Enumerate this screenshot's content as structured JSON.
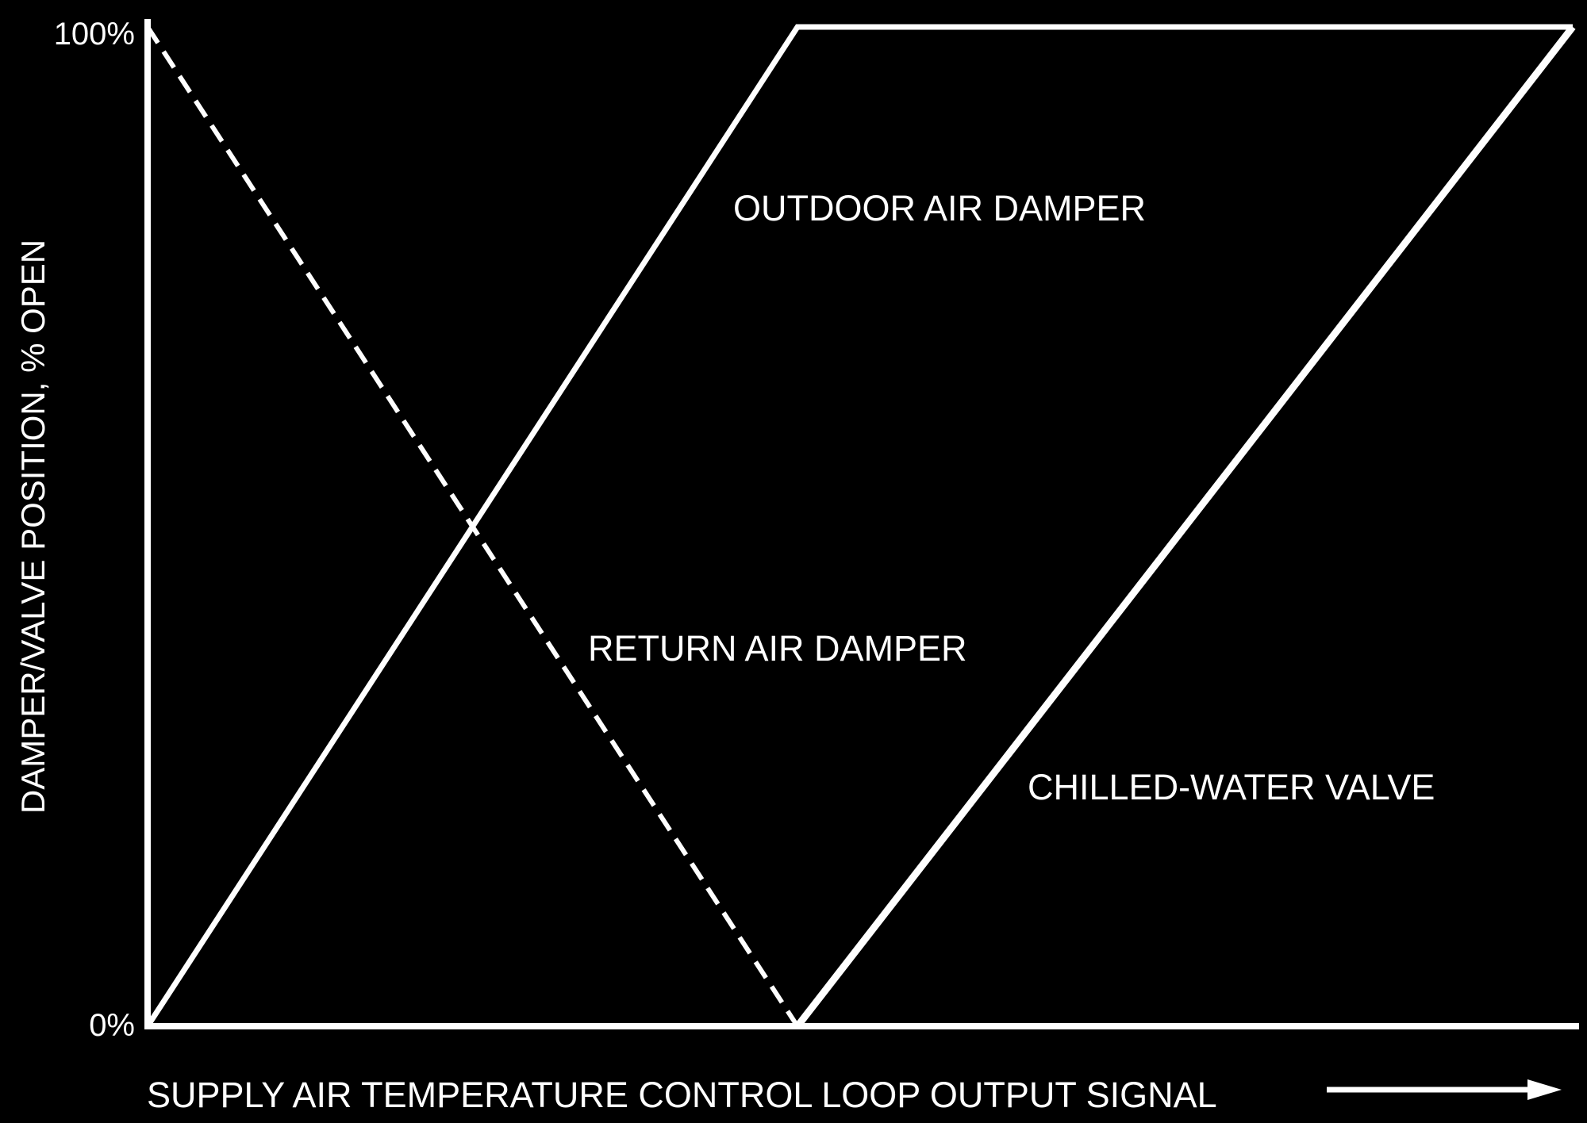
{
  "colors": {
    "background": "#000000",
    "foreground": "#ffffff"
  },
  "chart_data": {
    "type": "line",
    "title": "",
    "xlabel": "SUPPLY AIR TEMPERATURE CONTROL LOOP OUTPUT SIGNAL",
    "ylabel": "DAMPER/VALVE POSITION, % OPEN",
    "x_axis_arrow": true,
    "xlim": [
      0,
      100
    ],
    "ylim": [
      0,
      100
    ],
    "yticks": [
      {
        "value": 0,
        "label": "0%"
      },
      {
        "value": 100,
        "label": "100%"
      }
    ],
    "grid": false,
    "legend": "none",
    "series": [
      {
        "name": "OUTDOOR AIR DAMPER",
        "style": "solid",
        "x": [
          0,
          45.6,
          100
        ],
        "y": [
          0,
          100,
          100
        ]
      },
      {
        "name": "RETURN AIR DAMPER",
        "style": "dashed",
        "x": [
          0,
          45.6
        ],
        "y": [
          100,
          0
        ]
      },
      {
        "name": "CHILLED-WATER VALVE",
        "style": "solid",
        "x": [
          45.6,
          100
        ],
        "y": [
          0,
          100
        ]
      }
    ]
  }
}
